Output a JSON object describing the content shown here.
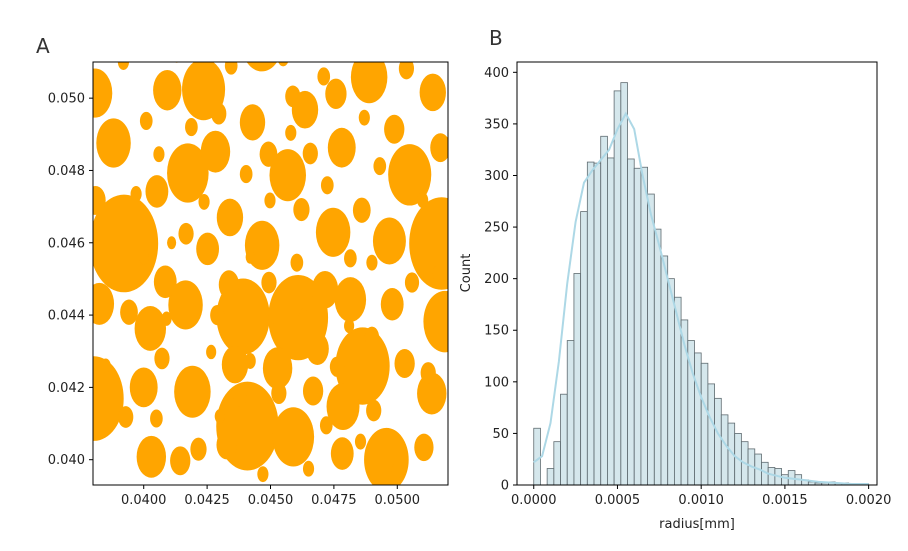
{
  "colors": {
    "particle": "#FFA500",
    "hist_fill": "#C7DFE5",
    "hist_edge": "#5F6B70",
    "kde": "#ADD8E6",
    "axis": "#000000"
  },
  "panels": {
    "a_label": "A",
    "b_label": "B"
  },
  "chart_data": [
    {
      "type": "scatter",
      "title": "",
      "panel": "A",
      "description": "Packed circular particles (orange discs) in a square domain",
      "xlim": [
        0.038,
        0.052
      ],
      "ylim": [
        0.0393,
        0.051
      ],
      "x_ticks": [
        0.04,
        0.0425,
        0.045,
        0.0475,
        0.05
      ],
      "x_tick_labels": [
        "0.0400",
        "0.0425",
        "0.0450",
        "0.0475",
        "0.0500"
      ],
      "y_ticks": [
        0.04,
        0.042,
        0.044,
        0.046,
        0.048,
        0.05
      ],
      "y_tick_labels": [
        "0.040",
        "0.042",
        "0.044",
        "0.046",
        "0.048",
        "0.050"
      ],
      "xlabel": "",
      "ylabel": "",
      "particles": [
        [
          0.03922,
          0.04598,
          0.00135
        ],
        [
          0.04392,
          0.04396,
          0.00105
        ],
        [
          0.04609,
          0.04393,
          0.00118
        ],
        [
          0.04409,
          0.04093,
          0.00123
        ],
        [
          0.03804,
          0.04169,
          0.00117
        ],
        [
          0.04863,
          0.04259,
          0.00107
        ],
        [
          0.05175,
          0.04598,
          0.00128
        ],
        [
          0.04236,
          0.05024,
          0.00085
        ],
        [
          0.04466,
          0.05156,
          0.00082
        ],
        [
          0.04889,
          0.05058,
          0.00072
        ],
        [
          0.03808,
          0.05014,
          0.00068
        ],
        [
          0.04093,
          0.05022,
          0.00056
        ],
        [
          0.03881,
          0.04876,
          0.00068
        ],
        [
          0.04174,
          0.04793,
          0.00082
        ],
        [
          0.04568,
          0.04787,
          0.00072
        ],
        [
          0.04781,
          0.04863,
          0.00055
        ],
        [
          0.05049,
          0.04788,
          0.00085
        ],
        [
          0.04467,
          0.04593,
          0.00068
        ],
        [
          0.04747,
          0.04629,
          0.00068
        ],
        [
          0.04969,
          0.04605,
          0.00065
        ],
        [
          0.05188,
          0.04382,
          0.00085
        ],
        [
          0.05136,
          0.04183,
          0.00058
        ],
        [
          0.04957,
          0.04,
          0.00088
        ],
        [
          0.04786,
          0.04147,
          0.00065
        ],
        [
          0.0459,
          0.04063,
          0.00082
        ],
        [
          0.0403,
          0.04008,
          0.00058
        ],
        [
          0.04192,
          0.04188,
          0.00072
        ],
        [
          0.04165,
          0.04428,
          0.00068
        ],
        [
          0.04026,
          0.04363,
          0.00062
        ],
        [
          0.03825,
          0.04431,
          0.00058
        ],
        [
          0.04,
          0.042,
          0.00055
        ],
        [
          0.04815,
          0.04443,
          0.00062
        ],
        [
          0.04685,
          0.04307,
          0.00045
        ],
        [
          0.04528,
          0.04253,
          0.00058
        ],
        [
          0.0436,
          0.04263,
          0.00052
        ],
        [
          0.04252,
          0.04583,
          0.00045
        ],
        [
          0.0434,
          0.0467,
          0.00052
        ],
        [
          0.04283,
          0.04852,
          0.00058
        ],
        [
          0.04429,
          0.04933,
          0.0005
        ],
        [
          0.04636,
          0.04968,
          0.00052
        ],
        [
          0.04758,
          0.05012,
          0.00042
        ],
        [
          0.0514,
          0.05016,
          0.00052
        ],
        [
          0.04988,
          0.04914,
          0.0004
        ],
        [
          0.0517,
          0.04863,
          0.0004
        ],
        [
          0.04052,
          0.04742,
          0.00045
        ],
        [
          0.0381,
          0.04717,
          0.0004
        ],
        [
          0.04085,
          0.04492,
          0.00045
        ],
        [
          0.04336,
          0.04484,
          0.0004
        ],
        [
          0.04715,
          0.0447,
          0.00052
        ],
        [
          0.0498,
          0.0443,
          0.00045
        ],
        [
          0.05029,
          0.04266,
          0.0004
        ],
        [
          0.04668,
          0.0419,
          0.0004
        ],
        [
          0.04327,
          0.04041,
          0.0004
        ],
        [
          0.04144,
          0.03997,
          0.0004
        ],
        [
          0.04783,
          0.04017,
          0.00045
        ],
        [
          0.05105,
          0.04034,
          0.00038
        ],
        [
          0.04216,
          0.04029,
          0.00032
        ],
        [
          0.04492,
          0.04845,
          0.00035
        ],
        [
          0.04657,
          0.04847,
          0.0003
        ],
        [
          0.04588,
          0.05005,
          0.0003
        ],
        [
          0.0486,
          0.0469,
          0.00035
        ],
        [
          0.04622,
          0.04692,
          0.00032
        ],
        [
          0.04296,
          0.04957,
          0.0003
        ],
        [
          0.04167,
          0.04625,
          0.0003
        ],
        [
          0.03942,
          0.04408,
          0.00035
        ],
        [
          0.04494,
          0.0449,
          0.0003
        ],
        [
          0.04762,
          0.04257,
          0.00028
        ],
        [
          0.04907,
          0.04136,
          0.0003
        ],
        [
          0.05122,
          0.0424,
          0.0003
        ],
        [
          0.04533,
          0.04184,
          0.0003
        ],
        [
          0.0429,
          0.044,
          0.00028
        ],
        [
          0.04072,
          0.0428,
          0.0003
        ],
        [
          0.03929,
          0.04118,
          0.0003
        ],
        [
          0.0438,
          0.04171,
          0.00025
        ],
        [
          0.0405,
          0.04114,
          0.00025
        ],
        [
          0.0472,
          0.04095,
          0.00025
        ],
        [
          0.049,
          0.0434,
          0.00028
        ],
        [
          0.04604,
          0.04545,
          0.00025
        ],
        [
          0.04815,
          0.04557,
          0.00025
        ],
        [
          0.05058,
          0.0449,
          0.00028
        ],
        [
          0.04404,
          0.0479,
          0.00025
        ],
        [
          0.04724,
          0.04759,
          0.00025
        ],
        [
          0.04931,
          0.04812,
          0.00025
        ],
        [
          0.04188,
          0.0492,
          0.00025
        ],
        [
          0.0458,
          0.04904,
          0.00022
        ],
        [
          0.0401,
          0.04937,
          0.00025
        ],
        [
          0.05036,
          0.05082,
          0.0003
        ],
        [
          0.0471,
          0.0506,
          0.00025
        ],
        [
          0.0487,
          0.04946,
          0.00022
        ],
        [
          0.04498,
          0.04717,
          0.00022
        ],
        [
          0.04238,
          0.04713,
          0.00022
        ],
        [
          0.0406,
          0.04845,
          0.00022
        ],
        [
          0.0397,
          0.04735,
          0.00022
        ],
        [
          0.0442,
          0.04273,
          0.00022
        ],
        [
          0.04855,
          0.0405,
          0.00022
        ],
        [
          0.0465,
          0.03975,
          0.00022
        ],
        [
          0.0447,
          0.0396,
          0.00022
        ],
        [
          0.0409,
          0.0439,
          0.0002
        ],
        [
          0.0516,
          0.04515,
          0.00022
        ],
        [
          0.049,
          0.04545,
          0.00022
        ],
        [
          0.04266,
          0.04298,
          0.0002
        ],
        [
          0.04,
          0.0456,
          0.0002
        ],
        [
          0.04345,
          0.0509,
          0.00025
        ],
        [
          0.0413,
          0.0512,
          0.00022
        ],
        [
          0.0392,
          0.051,
          0.00022
        ],
        [
          0.0455,
          0.0511,
          0.00022
        ],
        [
          0.0498,
          0.0515,
          0.00025
        ],
        [
          0.051,
          0.04718,
          0.00022
        ],
        [
          0.0481,
          0.0437,
          0.0002
        ],
        [
          0.0463,
          0.044,
          0.00018
        ],
        [
          0.0452,
          0.0436,
          0.00018
        ],
        [
          0.0411,
          0.046,
          0.00018
        ],
        [
          0.0385,
          0.0426,
          0.0002
        ],
        [
          0.043,
          0.0412,
          0.0002
        ],
        [
          0.05,
          0.0397,
          0.00022
        ],
        [
          0.0442,
          0.0456,
          0.00018
        ]
      ]
    },
    {
      "type": "bar",
      "panel": "B",
      "title": "",
      "xlabel": "radius[mm]",
      "ylabel": "Count",
      "xlim": [
        -0.0001,
        0.00205
      ],
      "ylim": [
        0,
        410
      ],
      "x_ticks": [
        0.0,
        0.0005,
        0.001,
        0.0015,
        0.002
      ],
      "x_tick_labels": [
        "0.0000",
        "0.0005",
        "0.0010",
        "0.0015",
        "0.0020"
      ],
      "y_ticks": [
        0,
        50,
        100,
        150,
        200,
        250,
        300,
        350,
        400
      ],
      "y_tick_labels": [
        "0",
        "50",
        "100",
        "150",
        "200",
        "250",
        "300",
        "350",
        "400"
      ],
      "bin_start": 0.0,
      "bin_width": 4e-05,
      "values": [
        55,
        0,
        16,
        42,
        88,
        140,
        205,
        265,
        313,
        312,
        338,
        317,
        382,
        390,
        316,
        307,
        308,
        282,
        248,
        222,
        200,
        182,
        160,
        140,
        128,
        118,
        98,
        84,
        68,
        60,
        50,
        42,
        35,
        30,
        22,
        17,
        16,
        10,
        14,
        10,
        5,
        3,
        2,
        2,
        3,
        2,
        2,
        1,
        1,
        1
      ],
      "kde_x": [
        0.0,
        5e-05,
        0.0001,
        0.00015,
        0.0002,
        0.00025,
        0.0003,
        0.00035,
        0.0004,
        0.00045,
        0.0005,
        0.00055,
        0.0006,
        0.00065,
        0.0007,
        0.00075,
        0.0008,
        0.00085,
        0.0009,
        0.00095,
        0.001,
        0.00105,
        0.0011,
        0.00115,
        0.0012,
        0.00125,
        0.0013,
        0.00135,
        0.0014,
        0.0015,
        0.0016,
        0.0017,
        0.0018,
        0.0019,
        0.002
      ],
      "kde_y": [
        22,
        28,
        60,
        120,
        195,
        255,
        293,
        305,
        315,
        325,
        345,
        360,
        345,
        300,
        262,
        232,
        200,
        168,
        136,
        108,
        85,
        66,
        50,
        38,
        28,
        22,
        18,
        15,
        11,
        7,
        5,
        3,
        2,
        1,
        1
      ]
    }
  ]
}
